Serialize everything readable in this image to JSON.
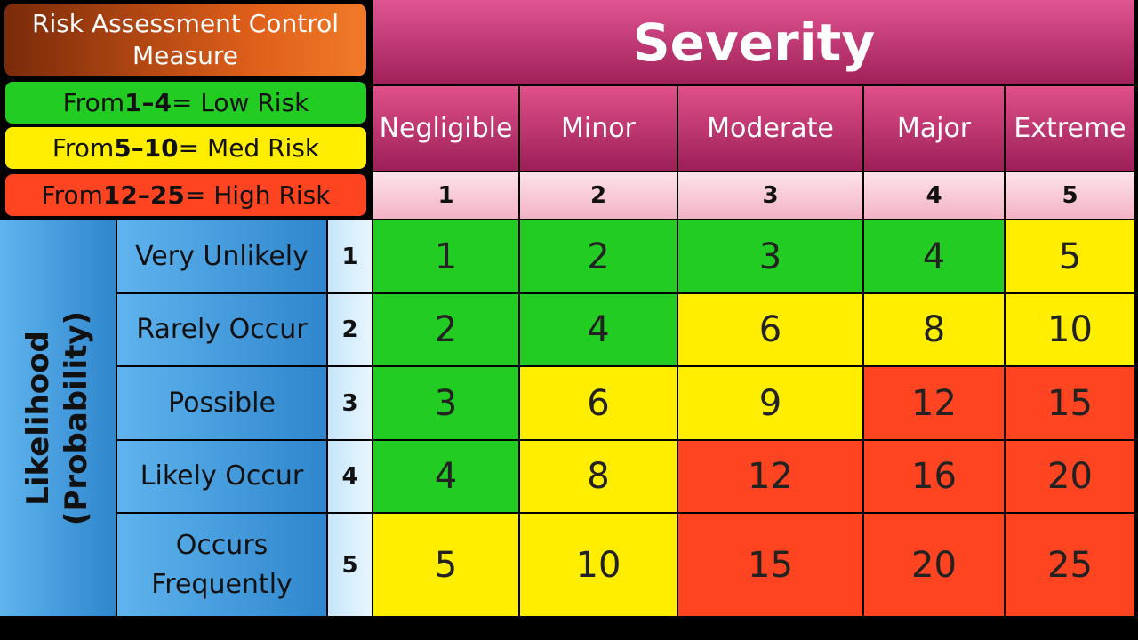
{
  "legend": {
    "title": "Risk Assessment Control Measure",
    "separator": "–",
    "items": [
      {
        "prefix": "From",
        "min": 1,
        "max": 4,
        "label": "= Low Risk",
        "color": "#22cc22"
      },
      {
        "prefix": "From",
        "min": 5,
        "max": 10,
        "label": "= Med Risk",
        "color": "#ffee00"
      },
      {
        "prefix": "From",
        "min": 12,
        "max": 25,
        "label": "= High Risk",
        "color": "#ff4422"
      }
    ]
  },
  "severity": {
    "title": "Severity",
    "columns": [
      {
        "name": "Negligible",
        "rank": 1
      },
      {
        "name": "Minor",
        "rank": 2
      },
      {
        "name": "Moderate",
        "rank": 3
      },
      {
        "name": "Major",
        "rank": 4
      },
      {
        "name": "Extreme",
        "rank": 5
      }
    ]
  },
  "likelihood": {
    "title": [
      "Likelihood",
      "(Probability)"
    ],
    "rows": [
      {
        "name": "Very Unlikely",
        "rank": 1
      },
      {
        "name": "Rarely Occur",
        "rank": 2
      },
      {
        "name": "Possible",
        "rank": 3
      },
      {
        "name": "Likely Occur",
        "rank": 4
      },
      {
        "name": "Occurs Frequently",
        "rank": 5
      }
    ]
  },
  "matrix": [
    [
      1,
      2,
      3,
      4,
      5
    ],
    [
      2,
      4,
      6,
      8,
      10
    ],
    [
      3,
      6,
      9,
      12,
      15
    ],
    [
      4,
      8,
      12,
      16,
      20
    ],
    [
      5,
      10,
      15,
      20,
      25
    ]
  ]
}
